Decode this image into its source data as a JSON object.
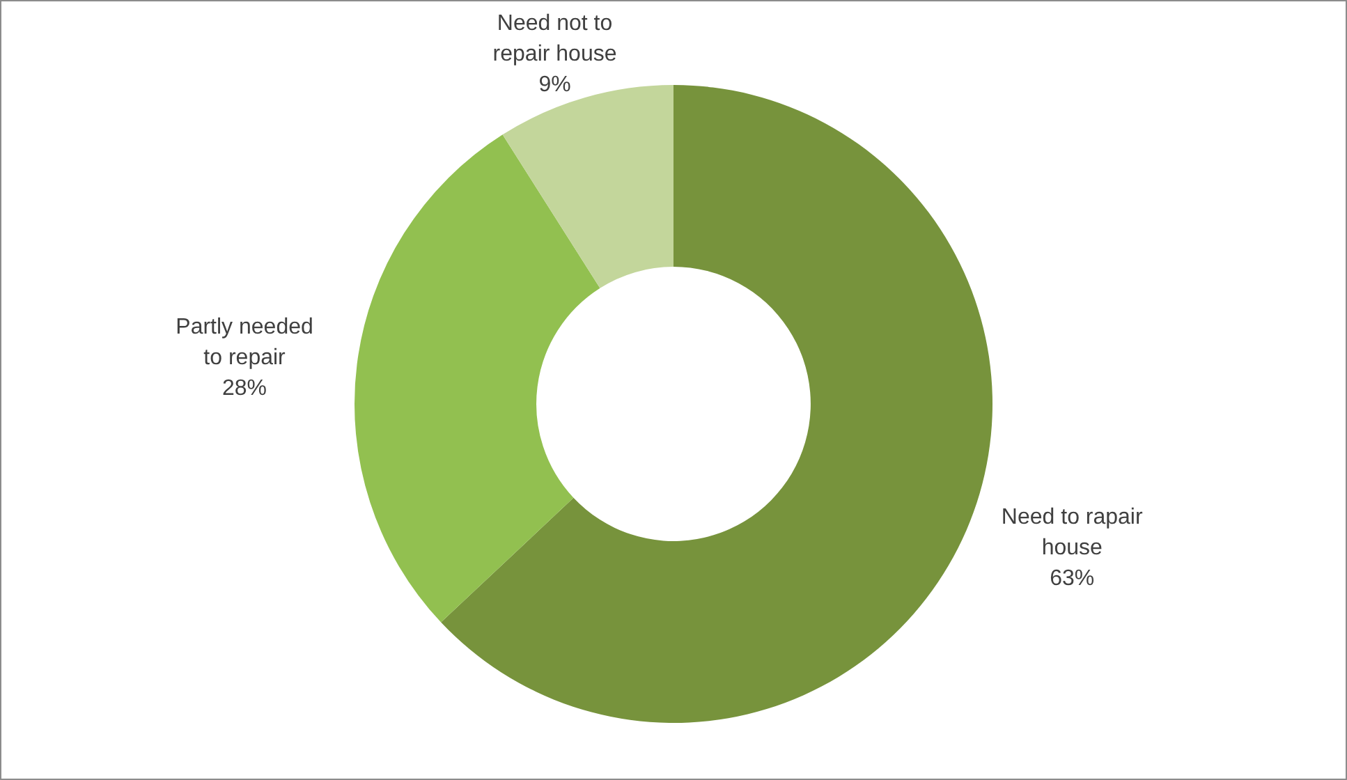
{
  "chart_data": {
    "type": "donut",
    "categories": [
      "Need to rapair house",
      "Partly needed to repair",
      "Need not to repair house"
    ],
    "values": [
      63,
      28,
      9
    ],
    "colors": [
      "#77933c",
      "#92c050",
      "#c3d69b"
    ],
    "value_labels": [
      "63%",
      "28%",
      "9%"
    ],
    "legend": false
  }
}
